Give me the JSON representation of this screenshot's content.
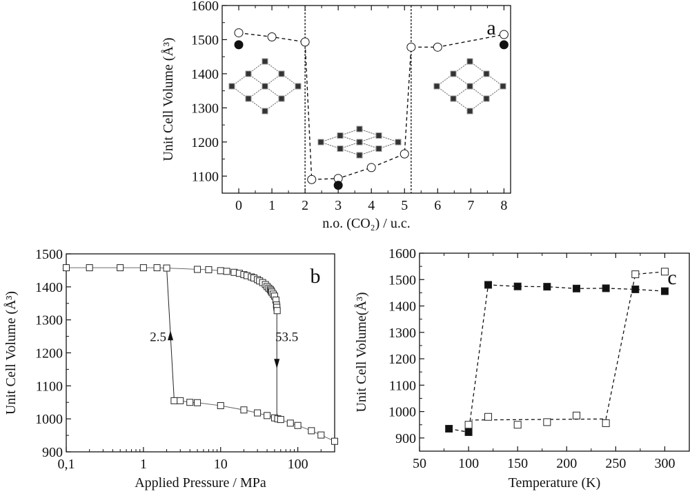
{
  "chart_data": [
    {
      "id": "a",
      "type": "scatter",
      "panel_label": "a",
      "xlabel": "n.o. (CO₂) / u.c.",
      "ylabel": "Unit Cell Volume (Å³)",
      "xscale": "linear",
      "xlim": [
        -0.5,
        8.2
      ],
      "ylim": [
        1050,
        1600
      ],
      "xticks": [
        0,
        1,
        2,
        3,
        4,
        5,
        6,
        7,
        8
      ],
      "xtick_labels": [
        "0",
        "1",
        "2",
        "3",
        "4",
        "5",
        "6",
        "7",
        "8"
      ],
      "yticks": [
        1100,
        1200,
        1300,
        1400,
        1500,
        1600
      ],
      "ytick_labels": [
        "1100",
        "1200",
        "1300",
        "1400",
        "1500",
        "1600"
      ],
      "vertical_lines": [
        2,
        5.2
      ],
      "series": [
        {
          "name": "open circles",
          "marker": "circle-open",
          "line": "dashed",
          "x": [
            0,
            1,
            2,
            2.2,
            3,
            4,
            5,
            5.2,
            6,
            8
          ],
          "y": [
            1520,
            1508,
            1493,
            1090,
            1093,
            1125,
            1165,
            1478,
            1478,
            1515
          ]
        },
        {
          "name": "filled circles",
          "marker": "circle-filled",
          "line": "none",
          "x": [
            0,
            3,
            8
          ],
          "y": [
            1485,
            1073,
            1485
          ]
        }
      ]
    },
    {
      "id": "b",
      "type": "scatter",
      "panel_label": "b",
      "xlabel": "Applied Pressure / MPa",
      "ylabel": "Unit Cell Volume (Å³)",
      "xscale": "log",
      "xlim": [
        0.1,
        300
      ],
      "ylim": [
        900,
        1500
      ],
      "xticks": [
        0.1,
        1,
        10,
        100
      ],
      "xtick_labels": [
        "0,1",
        "1",
        "10",
        "100"
      ],
      "yticks": [
        900,
        1000,
        1100,
        1200,
        1300,
        1400,
        1500
      ],
      "ytick_labels": [
        "900",
        "1000",
        "1100",
        "1200",
        "1300",
        "1400",
        "1500"
      ],
      "annotations": [
        {
          "text": "2.5",
          "x": 1.55,
          "y": 1250,
          "arrow": "up",
          "from": [
            2.5,
            1058
          ],
          "to": [
            2.0,
            1457
          ],
          "head_y": 1255
        },
        {
          "text": "53.5",
          "x": 72,
          "y": 1250,
          "arrow": "down",
          "from": [
            53.5,
            1328
          ],
          "to": [
            53.5,
            1002
          ],
          "head_y": 1165
        }
      ],
      "series": [
        {
          "name": "compression",
          "marker": "square-open",
          "line": "solid",
          "x": [
            0.1,
            0.2,
            0.5,
            1,
            1.5,
            2,
            5,
            7,
            10,
            12,
            15,
            17.5,
            20,
            22,
            25,
            27,
            30,
            32,
            35,
            38,
            40,
            42,
            44,
            45,
            46,
            48,
            50,
            52,
            53,
            53.5,
            54
          ],
          "y": [
            1458,
            1458,
            1458,
            1458,
            1458,
            1457,
            1453,
            1452,
            1449,
            1447,
            1444,
            1441,
            1437,
            1434,
            1430,
            1427,
            1422,
            1418,
            1413,
            1407,
            1401,
            1396,
            1392,
            1388,
            1384,
            1378,
            1372,
            1360,
            1345,
            1338,
            1328
          ]
        },
        {
          "name": "decompression",
          "marker": "square-open",
          "line": "solid",
          "x": [
            2.5,
            3,
            4,
            5,
            10,
            20,
            30,
            40,
            50,
            55,
            60,
            80,
            100,
            150,
            200,
            300
          ],
          "y": [
            1055,
            1055,
            1050,
            1049,
            1040,
            1027,
            1018,
            1010,
            1003,
            1000,
            998,
            987,
            980,
            964,
            951,
            932
          ]
        }
      ]
    },
    {
      "id": "c",
      "type": "scatter",
      "panel_label": "c",
      "xlabel": "Temperature (K)",
      "ylabel": "Unit Cell Volume(Å³)",
      "xscale": "linear",
      "xlim": [
        50,
        325
      ],
      "ylim": [
        850,
        1600
      ],
      "xticks": [
        50,
        100,
        150,
        200,
        250,
        300
      ],
      "xtick_labels": [
        "50",
        "100",
        "150",
        "200",
        "250",
        "300"
      ],
      "yticks": [
        900,
        1000,
        1100,
        1200,
        1300,
        1400,
        1500,
        1600
      ],
      "ytick_labels": [
        "900",
        "1000",
        "1100",
        "1200",
        "1300",
        "1400",
        "1500",
        "1600"
      ],
      "guide_lines": [
        {
          "x": [
            80,
            100,
            120,
            150,
            180,
            210,
            240,
            270,
            300
          ],
          "y": [
            935,
            922,
            1480,
            1474,
            1473,
            1466,
            1467,
            1463,
            1456
          ]
        },
        {
          "x": [
            300,
            270,
            240,
            103
          ],
          "y": [
            1530,
            1520,
            972,
            968
          ]
        }
      ],
      "series": [
        {
          "name": "heating (filled)",
          "marker": "square-filled",
          "line": "none",
          "x": [
            80,
            100,
            120,
            150,
            180,
            210,
            240,
            270,
            300
          ],
          "y": [
            935,
            922,
            1480,
            1474,
            1473,
            1466,
            1467,
            1463,
            1456
          ]
        },
        {
          "name": "cooling (open)",
          "marker": "square-open",
          "line": "none",
          "x": [
            100,
            120,
            150,
            180,
            210,
            240,
            270,
            300
          ],
          "y": [
            950,
            980,
            950,
            960,
            985,
            956,
            1520,
            1530
          ]
        }
      ]
    }
  ]
}
